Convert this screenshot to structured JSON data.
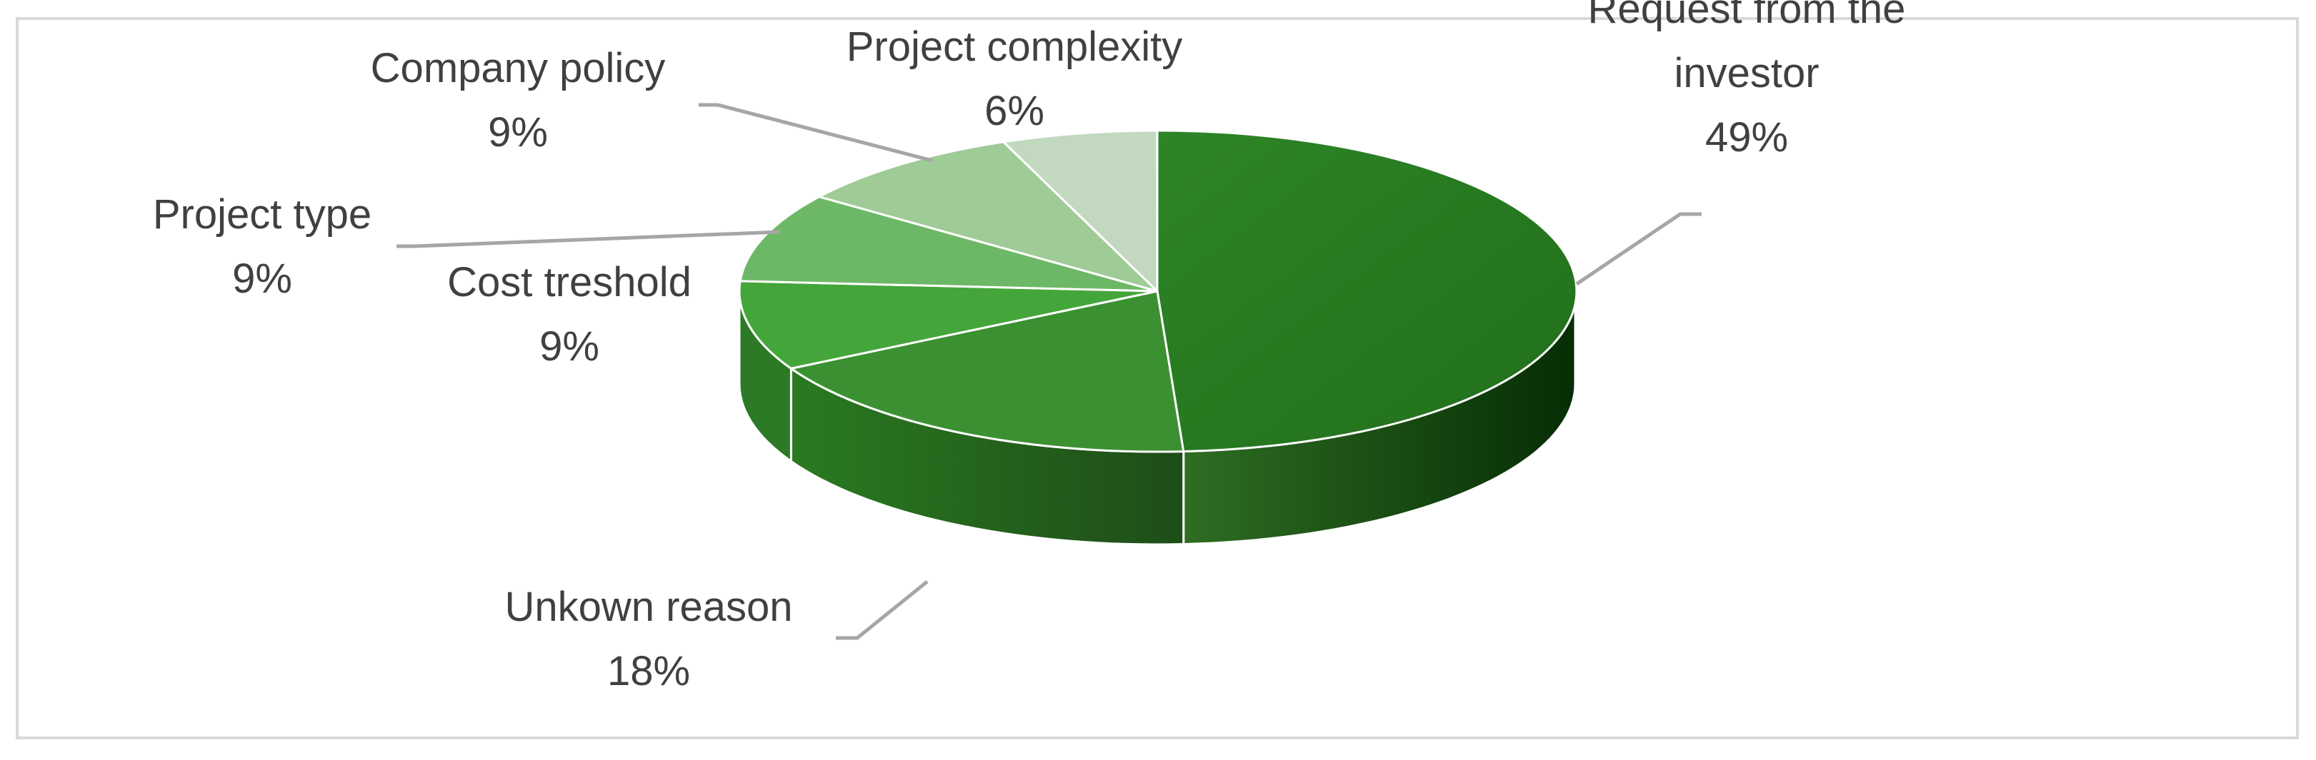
{
  "chart_data": {
    "type": "pie",
    "style": "3d",
    "title": "",
    "legend": "none",
    "slices": [
      {
        "label": "Request from the investor",
        "label_lines": [
          "Request from the",
          "investor"
        ],
        "value": 49,
        "value_label": "49%",
        "color": "#2b7d24",
        "side_color": "#15470f"
      },
      {
        "label": "Unkown reason",
        "label_lines": [
          "Unkown reason"
        ],
        "value": 18,
        "value_label": "18%",
        "color": "#3b9132",
        "side_color": "#23661c"
      },
      {
        "label": "Cost treshold",
        "label_lines": [
          "Cost treshold"
        ],
        "value": 9,
        "value_label": "9%",
        "color": "#44a63a",
        "side_color": "#2c7a25"
      },
      {
        "label": "Project type",
        "label_lines": [
          "Project type"
        ],
        "value": 9,
        "value_label": "9%",
        "color": "#6db866",
        "side_color": "#4b9444"
      },
      {
        "label": "Company policy",
        "label_lines": [
          "Company policy"
        ],
        "value": 9,
        "value_label": "9%",
        "color": "#9fcb97",
        "side_color": "#7fae77"
      },
      {
        "label": "Project complexity",
        "label_lines": [
          "Project complexity"
        ],
        "value": 6,
        "value_label": "6%",
        "color": "#c2d9c0",
        "side_color": "#a3bfa1"
      }
    ]
  }
}
